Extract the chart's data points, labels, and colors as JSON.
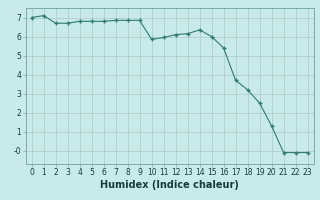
{
  "x": [
    0,
    1,
    2,
    3,
    4,
    5,
    6,
    7,
    8,
    9,
    10,
    11,
    12,
    13,
    14,
    15,
    16,
    17,
    18,
    19,
    20,
    21,
    22,
    23
  ],
  "y": [
    7.0,
    7.1,
    6.7,
    6.7,
    6.8,
    6.8,
    6.8,
    6.85,
    6.85,
    6.85,
    5.85,
    5.95,
    6.1,
    6.15,
    6.35,
    6.0,
    5.4,
    3.7,
    3.2,
    2.5,
    1.3,
    -0.1,
    -0.1,
    -0.1
  ],
  "line_color": "#2e7d6e",
  "marker": "+",
  "marker_color": "#2e7d6e",
  "bg_color": "#c8eae8",
  "grid_color": "#aec8c6",
  "xlabel": "Humidex (Indice chaleur)",
  "xlabel_fontsize": 7,
  "xlim": [
    -0.5,
    23.5
  ],
  "ylim": [
    -0.7,
    7.5
  ],
  "yticks": [
    0,
    1,
    2,
    3,
    4,
    5,
    6,
    7
  ],
  "ytick_labels": [
    "-0",
    "1",
    "2",
    "3",
    "4",
    "5",
    "6",
    "7"
  ],
  "xticks": [
    0,
    1,
    2,
    3,
    4,
    5,
    6,
    7,
    8,
    9,
    10,
    11,
    12,
    13,
    14,
    15,
    16,
    17,
    18,
    19,
    20,
    21,
    22,
    23
  ],
  "tick_fontsize": 5.5,
  "spine_color": "#7aacaa"
}
